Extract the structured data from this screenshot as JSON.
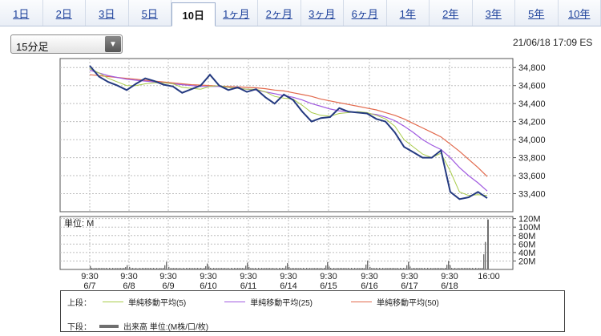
{
  "tabs": [
    {
      "label": "1日",
      "active": false
    },
    {
      "label": "2日",
      "active": false
    },
    {
      "label": "3日",
      "active": false
    },
    {
      "label": "5日",
      "active": false
    },
    {
      "label": "10日",
      "active": true
    },
    {
      "label": "1ヶ月",
      "active": false
    },
    {
      "label": "2ヶ月",
      "active": false
    },
    {
      "label": "3ヶ月",
      "active": false
    },
    {
      "label": "6ヶ月",
      "active": false
    },
    {
      "label": "1年",
      "active": false
    },
    {
      "label": "2年",
      "active": false
    },
    {
      "label": "3年",
      "active": false
    },
    {
      "label": "5年",
      "active": false
    },
    {
      "label": "10年",
      "active": false
    }
  ],
  "interval_select": {
    "value": "15分足"
  },
  "timestamp": "21/06/18 17:09 ES",
  "colors": {
    "price": "#243a80",
    "ma5": "#a9cc4b",
    "ma25": "#a05ae0",
    "ma50": "#e2694c",
    "volume": "#6f6f6f"
  },
  "legend": {
    "upper_label": "上段：",
    "lower_label": "下段：",
    "ma5_label": "単純移動平均(5)",
    "ma25_label": "単純移動平均(25)",
    "ma50_label": "単純移動平均(50)",
    "volume_label": "出来高 単位:(M株/口/枚)"
  },
  "chart_data": [
    {
      "type": "line",
      "x_labels": [
        {
          "time": "9:30",
          "date": "6/7"
        },
        {
          "time": "9:30",
          "date": "6/8"
        },
        {
          "time": "9:30",
          "date": "6/9"
        },
        {
          "time": "9:30",
          "date": "6/10"
        },
        {
          "time": "9:30",
          "date": "6/11"
        },
        {
          "time": "9:30",
          "date": "6/14"
        },
        {
          "time": "9:30",
          "date": "6/15"
        },
        {
          "time": "9:30",
          "date": "6/16"
        },
        {
          "time": "9:30",
          "date": "6/17"
        },
        {
          "time": "9:30",
          "date": "6/18"
        },
        {
          "time": "16:00",
          "date": ""
        }
      ],
      "y_ticks": [
        33400,
        33600,
        33800,
        34000,
        34200,
        34400,
        34600,
        34800
      ],
      "y_tick_labels": [
        "33,400",
        "33,600",
        "33,800",
        "34,000",
        "34,200",
        "34,400",
        "34,600",
        "34,800"
      ],
      "ylim": [
        33200,
        34900
      ],
      "grid": true,
      "price": [
        34820,
        34700,
        34640,
        34600,
        34550,
        34620,
        34680,
        34650,
        34610,
        34590,
        34520,
        34560,
        34600,
        34720,
        34600,
        34550,
        34580,
        34530,
        34560,
        34470,
        34400,
        34500,
        34440,
        34310,
        34200,
        34240,
        34250,
        34350,
        34310,
        34300,
        34290,
        34230,
        34200,
        34080,
        33920,
        33860,
        33800,
        33800,
        33880,
        33420,
        33340,
        33360,
        33420,
        33350
      ],
      "series": [
        {
          "name": "単純移動平均(5)",
          "key": "ma5",
          "values": [
            34790,
            34740,
            34680,
            34640,
            34600,
            34600,
            34620,
            34630,
            34630,
            34620,
            34580,
            34570,
            34560,
            34590,
            34600,
            34580,
            34570,
            34560,
            34560,
            34530,
            34480,
            34460,
            34450,
            34380,
            34300,
            34270,
            34260,
            34290,
            34300,
            34310,
            34300,
            34270,
            34230,
            34150,
            34000,
            33920,
            33840,
            33800,
            33850,
            33650,
            33420,
            33380,
            33390,
            33380
          ]
        },
        {
          "name": "単純移動平均(25)",
          "key": "ma25",
          "values": [
            34770,
            34740,
            34710,
            34690,
            34670,
            34660,
            34650,
            34640,
            34630,
            34620,
            34610,
            34600,
            34590,
            34590,
            34590,
            34580,
            34570,
            34560,
            34550,
            34530,
            34510,
            34490,
            34470,
            34440,
            34400,
            34370,
            34340,
            34320,
            34310,
            34300,
            34290,
            34280,
            34250,
            34210,
            34150,
            34080,
            34000,
            33940,
            33890,
            33800,
            33690,
            33600,
            33520,
            33430
          ]
        },
        {
          "name": "単純移動平均(50)",
          "key": "ma50",
          "values": [
            34720,
            34710,
            34700,
            34690,
            34680,
            34670,
            34660,
            34650,
            34640,
            34630,
            34620,
            34610,
            34605,
            34600,
            34595,
            34590,
            34585,
            34580,
            34575,
            34565,
            34550,
            34540,
            34520,
            34500,
            34480,
            34450,
            34430,
            34410,
            34390,
            34370,
            34350,
            34330,
            34300,
            34270,
            34230,
            34180,
            34130,
            34080,
            34030,
            33950,
            33870,
            33780,
            33690,
            33590
          ]
        }
      ]
    },
    {
      "type": "bar",
      "title": "単位: M",
      "y_ticks": [
        20,
        40,
        60,
        80,
        100,
        120
      ],
      "y_tick_labels": [
        "20M",
        "40M",
        "60M",
        "80M",
        "100M",
        "120M"
      ],
      "ylim": [
        0,
        125
      ],
      "grid": true,
      "volume_spikes": [
        {
          "day": "6/7",
          "open": 8,
          "close": 10
        },
        {
          "day": "6/8",
          "open": 6,
          "close": 18
        },
        {
          "day": "6/9",
          "open": 6,
          "close": 14
        },
        {
          "day": "6/10",
          "open": 7,
          "close": 16
        },
        {
          "day": "6/11",
          "open": 6,
          "close": 15
        },
        {
          "day": "6/14",
          "open": 6,
          "close": 17
        },
        {
          "day": "6/15",
          "open": 7,
          "close": 21
        },
        {
          "day": "6/16",
          "open": 6,
          "close": 18
        },
        {
          "day": "6/17",
          "open": 7,
          "close": 20
        },
        {
          "day": "6/18",
          "open": 10,
          "close": 65,
          "final": 118
        }
      ]
    }
  ]
}
